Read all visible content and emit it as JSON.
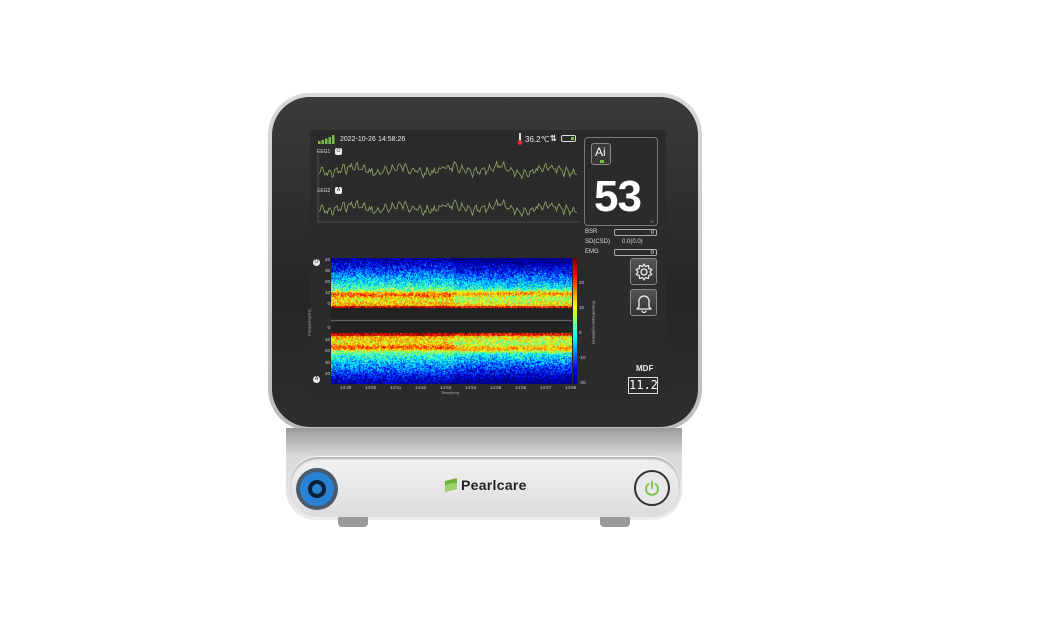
{
  "status": {
    "date": "2022-10-26",
    "time": "14:58:26",
    "temperature": "36.2℃",
    "signal_bars": 5,
    "battery_level": 0.2
  },
  "eeg": [
    {
      "label": "EEG1",
      "badge": "O"
    },
    {
      "label": "EEG2",
      "badge": "A"
    }
  ],
  "index": {
    "ai_label": "Ai",
    "value": "53",
    "unit": "%"
  },
  "params": [
    {
      "label": "BSR",
      "value": "0"
    },
    {
      "label": "SD(CSD)",
      "value": "0.0(0.0)"
    },
    {
      "label": "EMG",
      "value": "0"
    }
  ],
  "mdf": {
    "label": "MDF",
    "value": "11.2"
  },
  "spectrogram": {
    "ylabel": "Frequency(Hz)",
    "xlabel": "Time(h:m)",
    "colorbar_label": "Power/frequency(dB/Hz)",
    "yticks_top": [
      "40",
      "30",
      "20",
      "10",
      "0"
    ],
    "yticks_bottom": [
      "0",
      "10",
      "20",
      "30",
      "40"
    ],
    "xticks": [
      "14:49",
      "14:50",
      "14:51",
      "14:52",
      "14:53",
      "14:54",
      "14:55",
      "14:56",
      "14:57",
      "14:58"
    ],
    "colorbar_ticks": [
      "20",
      "10",
      "0",
      "-10",
      "-20"
    ],
    "channel_badges": [
      "O",
      "A"
    ]
  },
  "device": {
    "brand": "Pearlcare"
  },
  "colors": {
    "wave": "#8fa86a",
    "accent": "#7bc043",
    "port": "#2a82d4"
  }
}
